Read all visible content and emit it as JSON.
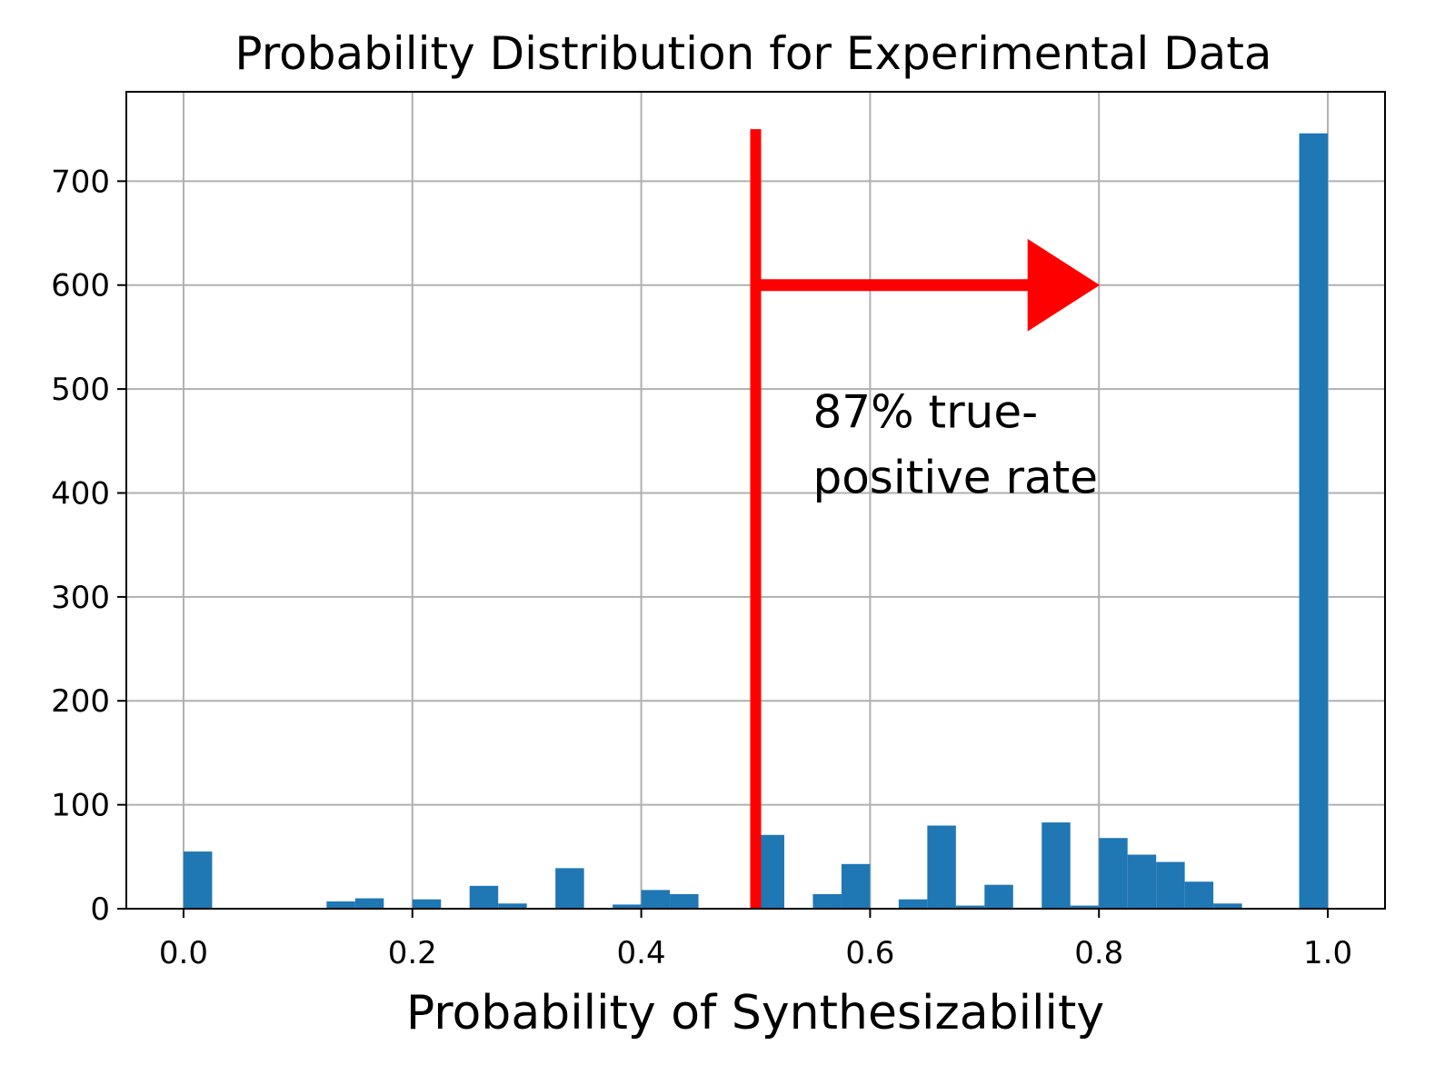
{
  "chart_data": {
    "type": "bar",
    "title": "Probability Distribution for Experimental Data",
    "xlabel": "Probability of Synthesizability",
    "ylabel": "",
    "xlim": [
      -0.05,
      1.05
    ],
    "ylim": [
      0,
      786
    ],
    "grid": true,
    "bin_width": 0.025,
    "x_ticks": [
      0.0,
      0.2,
      0.4,
      0.6,
      0.8,
      1.0
    ],
    "x_tick_labels": [
      "0.0",
      "0.2",
      "0.4",
      "0.6",
      "0.8",
      "1.0"
    ],
    "y_ticks": [
      0,
      100,
      200,
      300,
      400,
      500,
      600,
      700
    ],
    "y_tick_labels": [
      "0",
      "100",
      "200",
      "300",
      "400",
      "500",
      "600",
      "700"
    ],
    "bar_color": "#1f77b4",
    "bins": [
      {
        "x": 0.0,
        "value": 55
      },
      {
        "x": 0.125,
        "value": 7
      },
      {
        "x": 0.15,
        "value": 10
      },
      {
        "x": 0.2,
        "value": 9
      },
      {
        "x": 0.25,
        "value": 22
      },
      {
        "x": 0.275,
        "value": 5
      },
      {
        "x": 0.325,
        "value": 39
      },
      {
        "x": 0.375,
        "value": 4
      },
      {
        "x": 0.4,
        "value": 18
      },
      {
        "x": 0.425,
        "value": 14
      },
      {
        "x": 0.5,
        "value": 71
      },
      {
        "x": 0.55,
        "value": 14
      },
      {
        "x": 0.575,
        "value": 43
      },
      {
        "x": 0.625,
        "value": 9
      },
      {
        "x": 0.65,
        "value": 80
      },
      {
        "x": 0.675,
        "value": 3
      },
      {
        "x": 0.7,
        "value": 23
      },
      {
        "x": 0.725,
        "value": 1
      },
      {
        "x": 0.75,
        "value": 83
      },
      {
        "x": 0.775,
        "value": 3
      },
      {
        "x": 0.8,
        "value": 68
      },
      {
        "x": 0.825,
        "value": 52
      },
      {
        "x": 0.85,
        "value": 45
      },
      {
        "x": 0.875,
        "value": 26
      },
      {
        "x": 0.9,
        "value": 5
      },
      {
        "x": 0.975,
        "value": 746
      }
    ],
    "threshold": {
      "x": 0.5,
      "y_max": 750,
      "color": "#ff0000"
    },
    "arrow": {
      "x_start": 0.5,
      "x_end": 0.8,
      "y": 600,
      "color": "#ff0000"
    },
    "annotation": {
      "lines": [
        "87% true-",
        "positive rate"
      ],
      "x": 0.55,
      "y": 400
    }
  }
}
